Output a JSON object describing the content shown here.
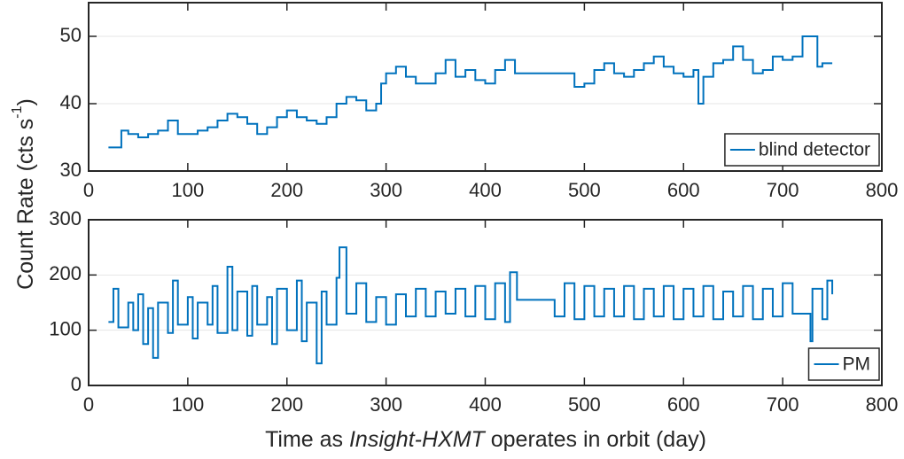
{
  "shared": {
    "xlabel_parts": [
      "Time as ",
      "Insight-HXMT",
      " operates in orbit (day)"
    ],
    "ylabel_parts": [
      "Count Rate (cts s",
      "-1",
      ")"
    ]
  },
  "chart_data": [
    {
      "type": "line",
      "step": true,
      "legend": "lower right",
      "grid": true,
      "xlim": [
        0,
        800
      ],
      "xticks": [
        0,
        100,
        200,
        300,
        400,
        500,
        600,
        700,
        800
      ],
      "ylim": [
        30,
        55
      ],
      "yticks": [
        30,
        40,
        50
      ],
      "x": [
        20,
        30,
        33,
        40,
        50,
        60,
        70,
        80,
        90,
        100,
        110,
        120,
        130,
        140,
        150,
        160,
        170,
        180,
        190,
        200,
        210,
        220,
        230,
        240,
        250,
        260,
        270,
        280,
        290,
        295,
        300,
        310,
        320,
        330,
        340,
        350,
        360,
        370,
        380,
        390,
        400,
        410,
        420,
        430,
        440,
        460,
        480,
        490,
        500,
        510,
        520,
        530,
        540,
        550,
        560,
        570,
        580,
        590,
        600,
        610,
        615,
        620,
        630,
        640,
        650,
        660,
        670,
        680,
        690,
        700,
        710,
        720,
        730,
        735,
        740,
        750
      ],
      "series": [
        {
          "name": "blind detector",
          "color": "#0072bd",
          "values": [
            33.5,
            33.5,
            36,
            35.5,
            35,
            35.5,
            36,
            37.5,
            35.5,
            35.5,
            36,
            36.5,
            37.5,
            38.5,
            38,
            37,
            35.5,
            36.5,
            38,
            39,
            38,
            37.5,
            37,
            38,
            40,
            41,
            40.5,
            39,
            40,
            43,
            44.5,
            45.5,
            44,
            43,
            43,
            44.5,
            46.5,
            44,
            45,
            43.5,
            43,
            45,
            46.5,
            44.5,
            44.5,
            44.5,
            44.5,
            42.5,
            43,
            45,
            46,
            44.5,
            44,
            45,
            46,
            47,
            45.5,
            44.5,
            44,
            45,
            40,
            44,
            46,
            46.5,
            48.5,
            46.5,
            44.5,
            45,
            47,
            46.5,
            47,
            50,
            50,
            45.5,
            46,
            46
          ]
        }
      ]
    },
    {
      "type": "line",
      "step": true,
      "legend": "lower right",
      "grid": true,
      "xlim": [
        0,
        800
      ],
      "xticks": [
        0,
        100,
        200,
        300,
        400,
        500,
        600,
        700,
        800
      ],
      "ylim": [
        0,
        300
      ],
      "yticks": [
        0,
        100,
        200,
        300
      ],
      "x": [
        20,
        25,
        30,
        40,
        45,
        50,
        55,
        60,
        65,
        70,
        80,
        85,
        90,
        100,
        105,
        110,
        120,
        125,
        130,
        140,
        145,
        150,
        160,
        165,
        170,
        180,
        185,
        190,
        200,
        210,
        215,
        220,
        230,
        235,
        240,
        250,
        253,
        260,
        270,
        280,
        290,
        300,
        310,
        320,
        330,
        340,
        350,
        360,
        370,
        380,
        390,
        400,
        410,
        420,
        425,
        432,
        465,
        470,
        480,
        490,
        500,
        510,
        520,
        530,
        540,
        550,
        560,
        570,
        580,
        590,
        600,
        610,
        620,
        630,
        640,
        650,
        660,
        670,
        680,
        690,
        700,
        710,
        725,
        728,
        730,
        740,
        745,
        750
      ],
      "series": [
        {
          "name": "PM",
          "color": "#0072bd",
          "values": [
            115,
            175,
            105,
            150,
            100,
            165,
            75,
            140,
            50,
            150,
            95,
            190,
            110,
            160,
            85,
            150,
            110,
            180,
            95,
            215,
            100,
            170,
            90,
            180,
            110,
            160,
            75,
            175,
            100,
            190,
            80,
            150,
            40,
            170,
            110,
            195,
            250,
            130,
            185,
            115,
            160,
            110,
            165,
            125,
            175,
            125,
            170,
            130,
            175,
            125,
            180,
            120,
            185,
            115,
            205,
            155,
            155,
            125,
            185,
            120,
            180,
            125,
            175,
            125,
            180,
            120,
            175,
            125,
            180,
            120,
            175,
            125,
            180,
            120,
            170,
            125,
            180,
            120,
            175,
            125,
            185,
            130,
            130,
            80,
            175,
            120,
            190,
            165
          ]
        }
      ]
    }
  ]
}
